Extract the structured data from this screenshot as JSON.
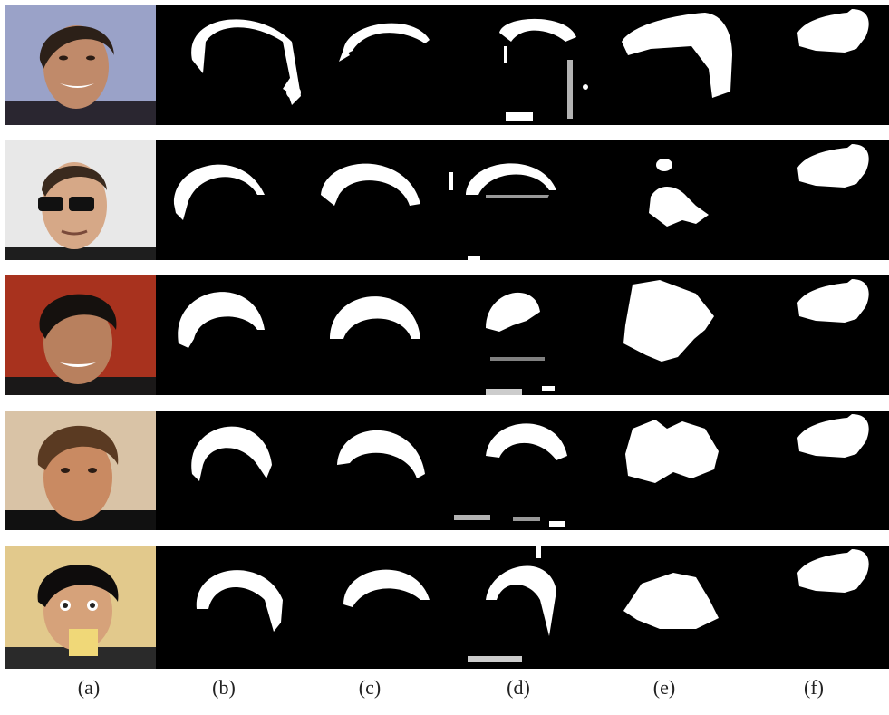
{
  "figure": {
    "captions": [
      "(a)",
      "(b)",
      "(c)",
      "(d)",
      "(e)",
      "(f)"
    ],
    "rows": [
      {
        "photo_bg": "#9aa2c8",
        "skin": "#c08a6a",
        "hair": "#2c2018",
        "clothing": "#2a2630"
      },
      {
        "photo_bg": "#e8e8e8",
        "skin": "#d6a887",
        "hair": "#3a2a1e",
        "clothing": "#1e1e1e"
      },
      {
        "photo_bg": "#a8321e",
        "skin": "#b8805e",
        "hair": "#15110e",
        "clothing": "#1a1818"
      },
      {
        "photo_bg": "#d9c3a6",
        "skin": "#c98a62",
        "hair": "#5a3a22",
        "clothing": "#111111"
      },
      {
        "photo_bg": "#e2c98c",
        "skin": "#d6a27a",
        "hair": "#0e0c0c",
        "clothing": "#2a2a2a"
      }
    ]
  }
}
